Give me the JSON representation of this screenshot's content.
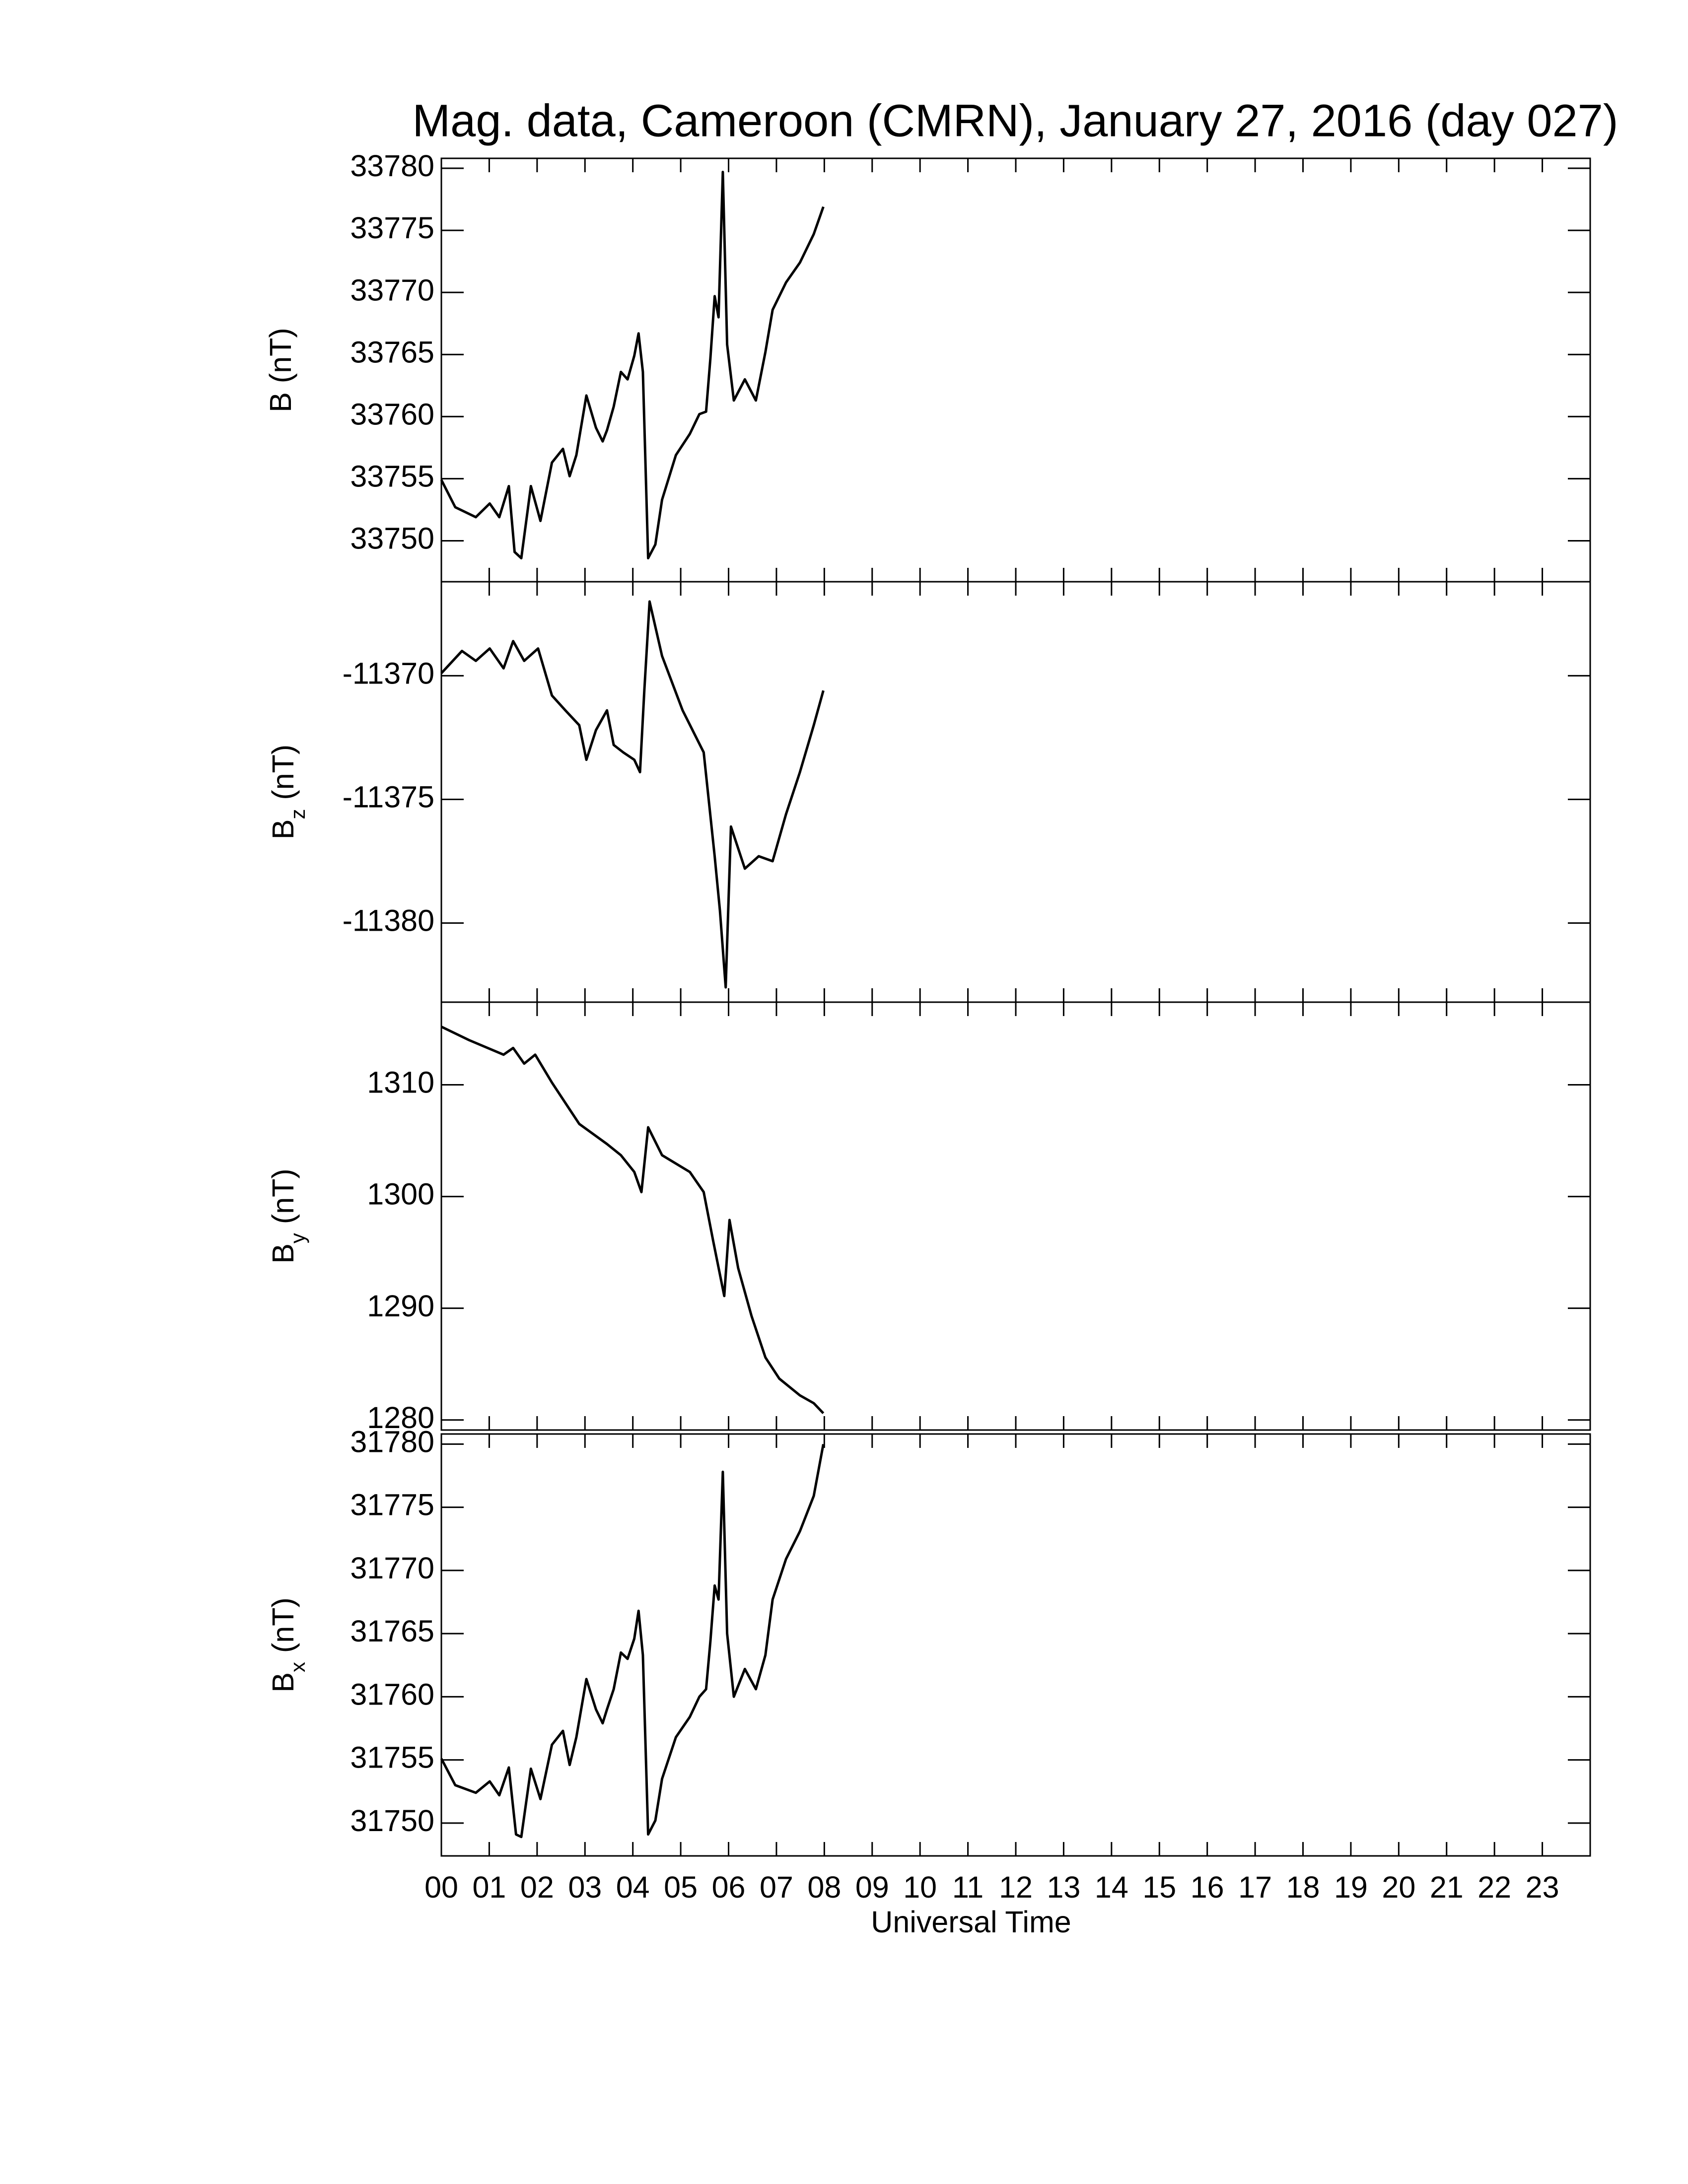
{
  "chart_data": [
    {
      "type": "line",
      "title": "Mag. data, Cameroon (CMRN), January 27, 2016 (day 027)",
      "ylabel": "B",
      "ylabel_unit": "(nT)",
      "ylim": [
        33746.7,
        33780.8
      ],
      "yticks": [
        33750,
        33755,
        33760,
        33765,
        33770,
        33775,
        33780
      ],
      "x": [
        0,
        0.29,
        0.72,
        1.01,
        1.21,
        1.41,
        1.53,
        1.67,
        1.87,
        2.07,
        2.31,
        2.54,
        2.68,
        2.82,
        3.03,
        3.23,
        3.37,
        3.46,
        3.6,
        3.75,
        3.89,
        4.03,
        4.12,
        4.21,
        4.32,
        4.47,
        4.61,
        4.9,
        5.19,
        5.39,
        5.53,
        5.62,
        5.71,
        5.79,
        5.88,
        5.97,
        6.11,
        6.34,
        6.57,
        6.77,
        6.92,
        7.2,
        7.49,
        7.78,
        7.98
      ],
      "series": [
        {
          "color": "#000000",
          "values": [
            33754.9,
            33752.7,
            33751.9,
            33753.0,
            33751.9,
            33754.4,
            33749.1,
            33748.6,
            33754.4,
            33751.6,
            33756.3,
            33757.4,
            33755.2,
            33756.9,
            33761.7,
            33759.1,
            33758.0,
            33758.9,
            33760.8,
            33763.6,
            33763.0,
            33764.9,
            33766.7,
            33763.6,
            33748.6,
            33749.7,
            33753.3,
            33756.9,
            33758.6,
            33760.2,
            33760.4,
            33764.7,
            33769.7,
            33768.0,
            33779.7,
            33765.8,
            33761.3,
            33763.0,
            33761.3,
            33765.2,
            33768.6,
            33770.8,
            33772.4,
            33774.7,
            33776.9
          ]
        }
      ]
    },
    {
      "type": "line",
      "ylabel": "B",
      "ylabel_sub": "z",
      "ylabel_unit": "(nT)",
      "ylim": [
        -11383.2,
        -11366.2
      ],
      "yticks": [
        -11380,
        -11375,
        -11370
      ],
      "x": [
        0,
        0.43,
        0.72,
        1.01,
        1.3,
        1.5,
        1.73,
        2.02,
        2.31,
        2.59,
        2.88,
        3.03,
        3.23,
        3.46,
        3.6,
        3.8,
        4.03,
        4.15,
        4.24,
        4.35,
        4.61,
        5.04,
        5.48,
        5.71,
        5.82,
        5.94,
        6.05,
        6.34,
        6.63,
        6.92,
        7.2,
        7.49,
        7.78,
        7.98
      ],
      "series": [
        {
          "color": "#000000",
          "values": [
            -11369.9,
            -11369.0,
            -11369.4,
            -11368.9,
            -11369.7,
            -11368.6,
            -11369.4,
            -11368.9,
            -11370.8,
            -11371.4,
            -11372.0,
            -11373.4,
            -11372.2,
            -11371.4,
            -11372.8,
            -11373.1,
            -11373.4,
            -11373.9,
            -11370.6,
            -11367.0,
            -11369.2,
            -11371.4,
            -11373.1,
            -11377.3,
            -11379.5,
            -11382.6,
            -11376.1,
            -11377.8,
            -11377.3,
            -11377.5,
            -11375.6,
            -11373.9,
            -11372.0,
            -11370.6
          ]
        }
      ]
    },
    {
      "type": "line",
      "ylabel": "B",
      "ylabel_sub": "y",
      "ylabel_unit": "(nT)",
      "ylim": [
        1279.1,
        1317.4
      ],
      "yticks": [
        1280,
        1290,
        1300,
        1310
      ],
      "x": [
        0,
        0.58,
        1.3,
        1.5,
        1.73,
        1.96,
        2.31,
        2.88,
        3.46,
        3.75,
        4.03,
        4.18,
        4.32,
        4.61,
        5.19,
        5.48,
        5.68,
        5.91,
        6.02,
        6.2,
        6.48,
        6.77,
        7.06,
        7.49,
        7.78,
        7.98
      ],
      "series": [
        {
          "color": "#000000",
          "values": [
            1315.2,
            1314.0,
            1312.7,
            1313.3,
            1311.9,
            1312.7,
            1310.2,
            1306.5,
            1304.7,
            1303.7,
            1302.2,
            1300.4,
            1306.2,
            1303.7,
            1302.2,
            1300.4,
            1296.0,
            1291.1,
            1297.9,
            1293.6,
            1289.3,
            1285.6,
            1283.7,
            1282.2,
            1281.5,
            1280.6
          ]
        }
      ]
    },
    {
      "type": "line",
      "ylabel": "B",
      "ylabel_sub": "x",
      "ylabel_unit": "(nT)",
      "xlabel": "Universal Time",
      "ylim": [
        31747.4,
        31780.8
      ],
      "yticks": [
        31750,
        31755,
        31760,
        31765,
        31770,
        31775,
        31780
      ],
      "xlim": [
        0,
        24
      ],
      "xticks": [
        {
          "value": 0,
          "label": "00"
        },
        {
          "value": 1,
          "label": "01"
        },
        {
          "value": 2,
          "label": "02"
        },
        {
          "value": 3,
          "label": "03"
        },
        {
          "value": 4,
          "label": "04"
        },
        {
          "value": 5,
          "label": "05"
        },
        {
          "value": 6,
          "label": "06"
        },
        {
          "value": 7,
          "label": "07"
        },
        {
          "value": 8,
          "label": "08"
        },
        {
          "value": 9,
          "label": "09"
        },
        10,
        11,
        12,
        13,
        14,
        15,
        16,
        17,
        18,
        19,
        20,
        21,
        22,
        23
      ],
      "x": [
        0,
        0.29,
        0.72,
        1.01,
        1.21,
        1.41,
        1.56,
        1.67,
        1.87,
        2.07,
        2.31,
        2.54,
        2.68,
        2.82,
        3.03,
        3.23,
        3.37,
        3.46,
        3.6,
        3.75,
        3.89,
        4.03,
        4.12,
        4.21,
        4.32,
        4.47,
        4.61,
        4.9,
        5.19,
        5.39,
        5.53,
        5.62,
        5.71,
        5.79,
        5.88,
        5.97,
        6.11,
        6.34,
        6.57,
        6.77,
        6.92,
        7.2,
        7.49,
        7.78,
        7.98
      ],
      "series": [
        {
          "color": "#000000",
          "values": [
            31755.1,
            31753.0,
            31752.4,
            31753.3,
            31752.2,
            31754.4,
            31749.1,
            31748.9,
            31754.3,
            31751.9,
            31756.2,
            31757.3,
            31754.6,
            31756.8,
            31761.4,
            31759.0,
            31757.9,
            31759.0,
            31760.6,
            31763.5,
            31763.0,
            31764.6,
            31766.8,
            31763.3,
            31749.1,
            31750.2,
            31753.5,
            31756.8,
            31758.4,
            31760.0,
            31760.6,
            31764.4,
            31768.8,
            31767.7,
            31777.8,
            31765.0,
            31760.0,
            31762.2,
            31760.6,
            31763.3,
            31767.7,
            31770.9,
            31773.1,
            31775.9,
            31780.0
          ]
        }
      ]
    }
  ]
}
